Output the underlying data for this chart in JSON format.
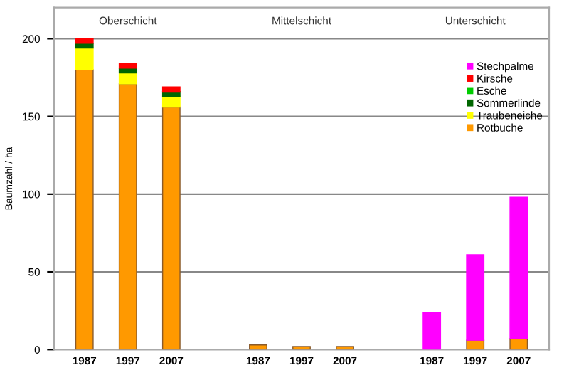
{
  "chart_data": {
    "type": "bar",
    "stacked": true,
    "ylabel": "Baumzahl / ha",
    "categories": [
      "1987",
      "1997",
      "2007",
      null,
      "1987",
      "1997",
      "2007",
      null,
      "1987",
      "1997",
      "2007"
    ],
    "series": [
      {
        "name": "Rotbuche",
        "color": "#ff9900",
        "values": [
          180,
          171,
          156,
          null,
          3,
          2,
          2,
          null,
          null,
          6,
          7
        ]
      },
      {
        "name": "Traubeneiche",
        "color": "#ffff00",
        "values": [
          14,
          7,
          7,
          null,
          null,
          null,
          null,
          null,
          null,
          null,
          null
        ]
      },
      {
        "name": "Sommerlinde",
        "color": "#006600",
        "values": [
          3,
          3,
          3,
          null,
          null,
          null,
          null,
          null,
          null,
          null,
          null
        ]
      },
      {
        "name": "Esche",
        "color": "#00cc00",
        "values": [
          null,
          null,
          null,
          null,
          null,
          null,
          null,
          null,
          null,
          null,
          null
        ]
      },
      {
        "name": "Kirsche",
        "color": "#ff0000",
        "values": [
          3,
          3,
          3,
          null,
          null,
          null,
          null,
          null,
          null,
          null,
          null
        ]
      },
      {
        "name": "Stechpalme",
        "color": "#ff00ff",
        "values": [
          null,
          null,
          null,
          null,
          null,
          null,
          null,
          null,
          24,
          55,
          91
        ]
      }
    ],
    "annotations": [
      "Oberschicht",
      "Mittelschicht",
      "Unterschicht"
    ],
    "ylim": [
      0,
      220
    ],
    "yticks": [
      0,
      50,
      100,
      150,
      200
    ],
    "grid": "y",
    "legend": "top right"
  }
}
